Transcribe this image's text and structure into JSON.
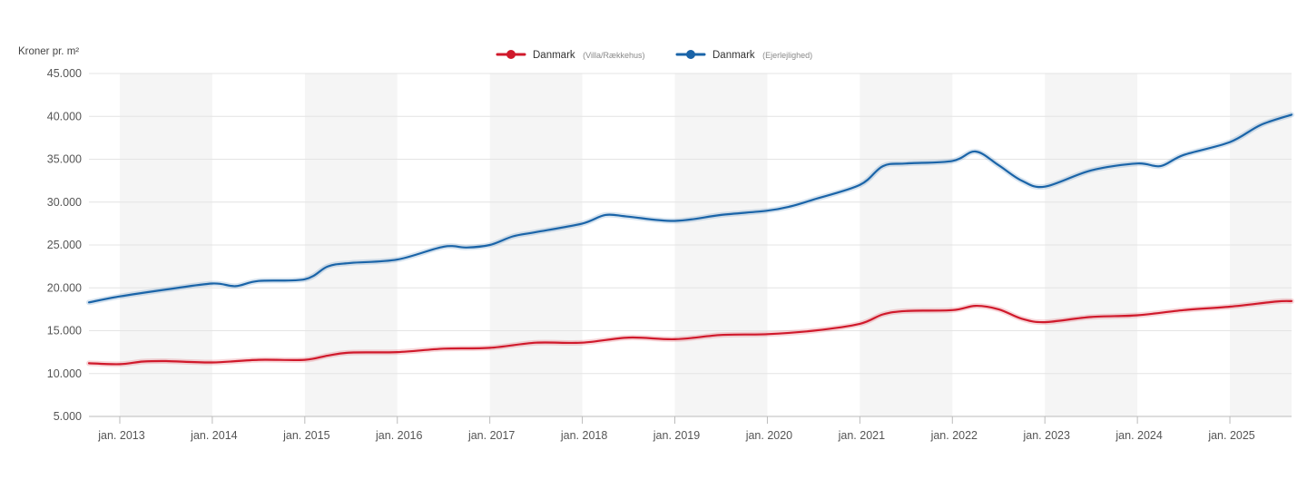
{
  "chart_data": {
    "type": "line",
    "ylabel": "Kroner pr. m²",
    "ylim": [
      5000,
      45000
    ],
    "y_ticks": [
      5000,
      10000,
      15000,
      20000,
      25000,
      30000,
      35000,
      40000,
      45000
    ],
    "y_tick_labels": [
      "5.000",
      "10.000",
      "15.000",
      "20.000",
      "25.000",
      "30.000",
      "35.000",
      "40.000",
      "45.000"
    ],
    "x_range": [
      "2012-09",
      "2025-09"
    ],
    "x_ticks": [
      "2013-01",
      "2014-01",
      "2015-01",
      "2016-01",
      "2017-01",
      "2018-01",
      "2019-01",
      "2020-01",
      "2021-01",
      "2022-01",
      "2023-01",
      "2024-01",
      "2025-01"
    ],
    "x_tick_labels": [
      "jan. 2013",
      "jan. 2014",
      "jan. 2015",
      "jan. 2016",
      "jan. 2017",
      "jan. 2018",
      "jan. 2019",
      "jan. 2020",
      "jan. 2021",
      "jan. 2022",
      "jan. 2023",
      "jan. 2024",
      "jan. 2025"
    ],
    "grid": true,
    "alternating_year_bands": true,
    "legend_position": "top-center",
    "series": [
      {
        "name": "Danmark",
        "sub": "(Villa/Rækkehus)",
        "color": "#d0192b",
        "points": [
          [
            "2012-09",
            11200
          ],
          [
            "2013-01",
            11100
          ],
          [
            "2013-04",
            11400
          ],
          [
            "2013-07",
            11450
          ],
          [
            "2014-01",
            11300
          ],
          [
            "2014-07",
            11600
          ],
          [
            "2015-01",
            11600
          ],
          [
            "2015-04",
            12100
          ],
          [
            "2015-07",
            12450
          ],
          [
            "2016-01",
            12500
          ],
          [
            "2016-07",
            12900
          ],
          [
            "2017-01",
            13000
          ],
          [
            "2017-07",
            13600
          ],
          [
            "2018-01",
            13600
          ],
          [
            "2018-07",
            14200
          ],
          [
            "2019-01",
            14000
          ],
          [
            "2019-07",
            14500
          ],
          [
            "2020-01",
            14600
          ],
          [
            "2020-07",
            15000
          ],
          [
            "2021-01",
            15800
          ],
          [
            "2021-04",
            16900
          ],
          [
            "2021-07",
            17300
          ],
          [
            "2022-01",
            17400
          ],
          [
            "2022-04",
            17900
          ],
          [
            "2022-07",
            17500
          ],
          [
            "2022-10",
            16400
          ],
          [
            "2023-01",
            16000
          ],
          [
            "2023-07",
            16600
          ],
          [
            "2024-01",
            16800
          ],
          [
            "2024-07",
            17400
          ],
          [
            "2025-01",
            17800
          ],
          [
            "2025-07",
            18400
          ],
          [
            "2025-09",
            18450
          ]
        ]
      },
      {
        "name": "Danmark",
        "sub": "(Ejerlejlighed)",
        "color": "#1a64a8",
        "points": [
          [
            "2012-09",
            18300
          ],
          [
            "2013-01",
            19000
          ],
          [
            "2013-07",
            19800
          ],
          [
            "2014-01",
            20500
          ],
          [
            "2014-04",
            20200
          ],
          [
            "2014-07",
            20800
          ],
          [
            "2015-01",
            21000
          ],
          [
            "2015-04",
            22500
          ],
          [
            "2015-07",
            22900
          ],
          [
            "2016-01",
            23300
          ],
          [
            "2016-07",
            24800
          ],
          [
            "2016-10",
            24700
          ],
          [
            "2017-01",
            25000
          ],
          [
            "2017-04",
            26000
          ],
          [
            "2017-07",
            26500
          ],
          [
            "2018-01",
            27500
          ],
          [
            "2018-04",
            28500
          ],
          [
            "2018-07",
            28300
          ],
          [
            "2019-01",
            27800
          ],
          [
            "2019-07",
            28500
          ],
          [
            "2020-01",
            29000
          ],
          [
            "2020-04",
            29500
          ],
          [
            "2020-07",
            30300
          ],
          [
            "2021-01",
            32000
          ],
          [
            "2021-04",
            34200
          ],
          [
            "2021-07",
            34500
          ],
          [
            "2022-01",
            34800
          ],
          [
            "2022-04",
            35900
          ],
          [
            "2022-07",
            34300
          ],
          [
            "2022-10",
            32500
          ],
          [
            "2023-01",
            31800
          ],
          [
            "2023-07",
            33700
          ],
          [
            "2024-01",
            34500
          ],
          [
            "2024-04",
            34200
          ],
          [
            "2024-07",
            35500
          ],
          [
            "2025-01",
            37000
          ],
          [
            "2025-05",
            39000
          ],
          [
            "2025-09",
            40200
          ]
        ]
      }
    ]
  }
}
